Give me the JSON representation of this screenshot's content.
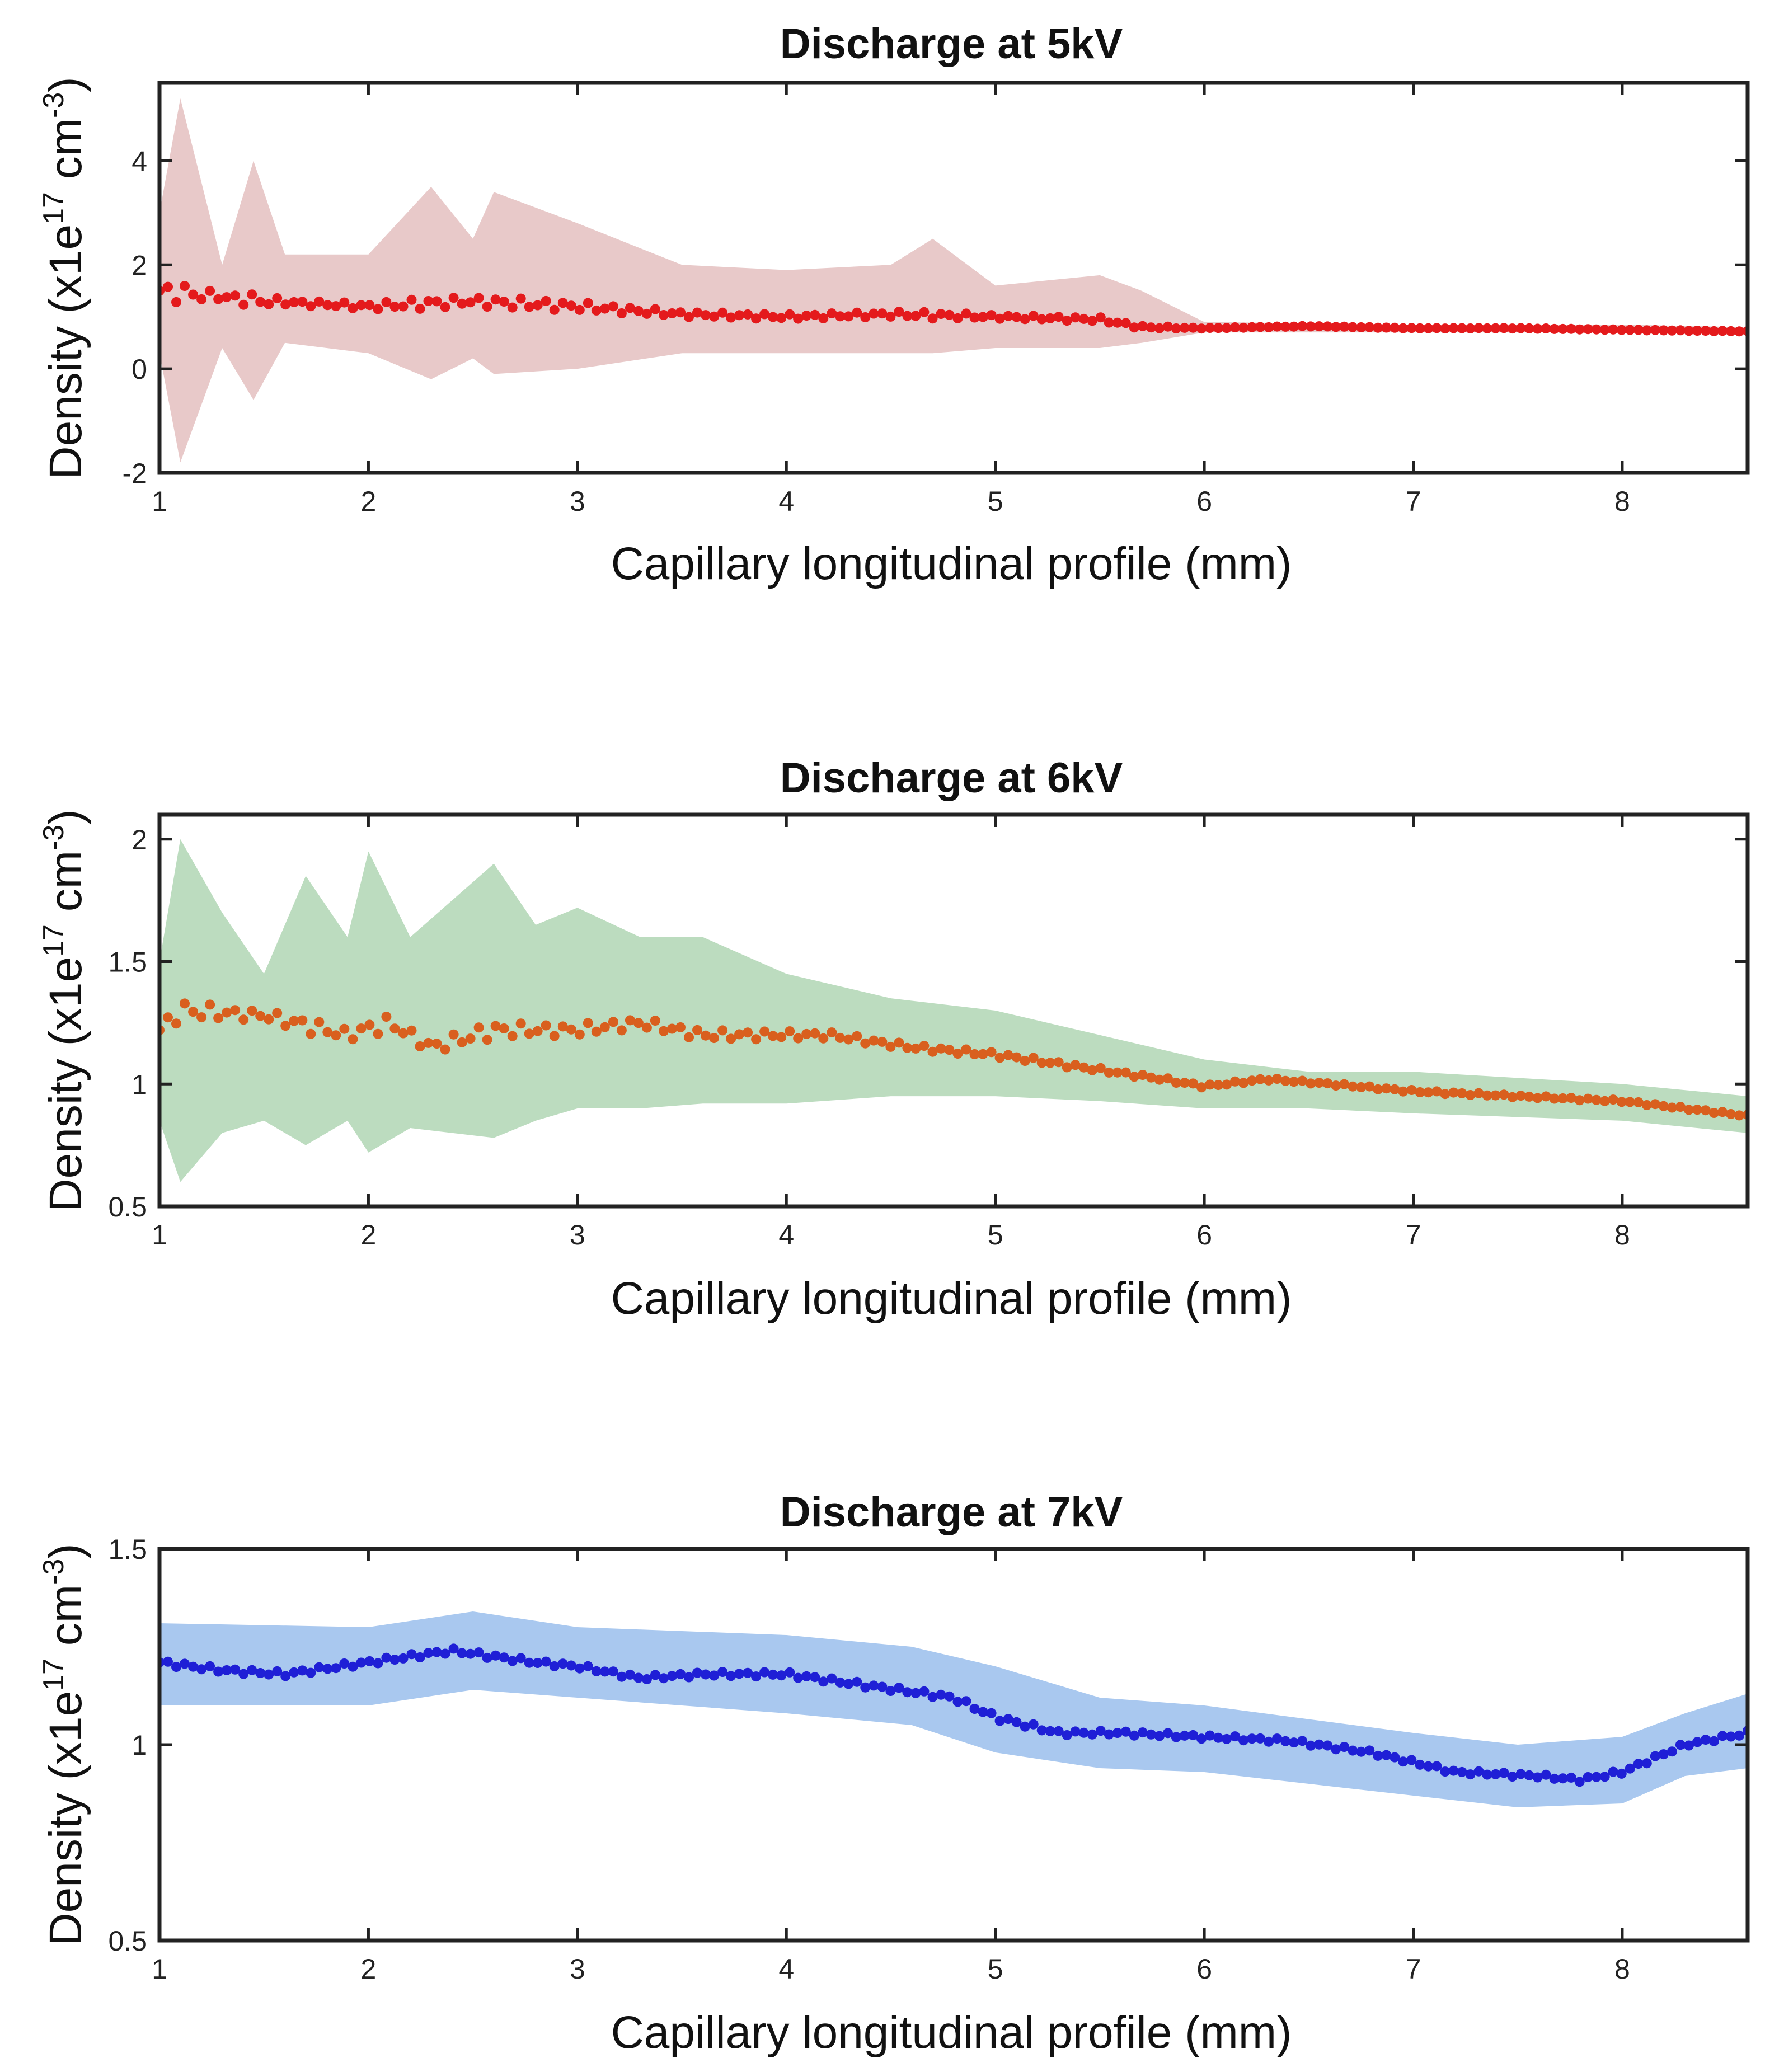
{
  "chart_data": [
    {
      "type": "scatter",
      "title": "Discharge at 5kV",
      "xlabel": "Capillary longitudinal profile (mm)",
      "ylabel": {
        "prefix": "Density (x1e",
        "sup1": "17",
        "mid": " cm",
        "sup2": "-3",
        "suffix": ")"
      },
      "xlim": [
        1,
        8.6
      ],
      "ylim": [
        -2,
        5.5
      ],
      "xticks": [
        1,
        2,
        3,
        4,
        5,
        6,
        7,
        8
      ],
      "yticks": [
        -2,
        0,
        2,
        4
      ],
      "marker_color": "#e41a1c",
      "band_color": "#e8c9c9",
      "series": [
        {
          "name": "Density mean",
          "x": [
            1.0,
            1.5,
            2.0,
            2.5,
            3.0,
            3.5,
            4.0,
            4.5,
            5.0,
            5.5,
            5.7,
            6.0,
            6.5,
            7.0,
            7.5,
            8.0,
            8.6
          ],
          "y": [
            1.5,
            1.3,
            1.2,
            1.3,
            1.2,
            1.05,
            1.0,
            1.05,
            1.0,
            0.95,
            0.8,
            0.78,
            0.82,
            0.78,
            0.78,
            0.75,
            0.72
          ]
        },
        {
          "name": "Uncertainty upper",
          "x": [
            1.0,
            1.1,
            1.3,
            1.45,
            1.6,
            2.0,
            2.3,
            2.5,
            2.6,
            3.0,
            3.5,
            4.0,
            4.5,
            4.7,
            5.0,
            5.5,
            5.7,
            6.0,
            7.0,
            8.0,
            8.6
          ],
          "y": [
            3.0,
            5.2,
            2.0,
            4.0,
            2.2,
            2.2,
            3.5,
            2.5,
            3.4,
            2.8,
            2.0,
            1.9,
            2.0,
            2.5,
            1.6,
            1.8,
            1.5,
            0.9,
            0.85,
            0.85,
            0.8
          ]
        },
        {
          "name": "Uncertainty lower",
          "x": [
            1.0,
            1.1,
            1.3,
            1.45,
            1.6,
            2.0,
            2.3,
            2.5,
            2.6,
            3.0,
            3.5,
            4.0,
            4.5,
            4.7,
            5.0,
            5.5,
            5.7,
            6.0,
            7.0,
            8.0,
            8.6
          ],
          "y": [
            0.3,
            -1.8,
            0.4,
            -0.6,
            0.5,
            0.3,
            -0.2,
            0.2,
            -0.1,
            0.0,
            0.3,
            0.3,
            0.3,
            0.3,
            0.4,
            0.4,
            0.5,
            0.7,
            0.7,
            0.7,
            0.65
          ]
        }
      ]
    },
    {
      "type": "scatter",
      "title": "Discharge at 6kV",
      "xlabel": "Capillary longitudinal profile (mm)",
      "ylabel": {
        "prefix": "Density (x1e",
        "sup1": "17",
        "mid": " cm",
        "sup2": "-3",
        "suffix": ")"
      },
      "xlim": [
        1,
        8.6
      ],
      "ylim": [
        0.5,
        2.1
      ],
      "xticks": [
        1,
        2,
        3,
        4,
        5,
        6,
        7,
        8
      ],
      "yticks": [
        0.5,
        1,
        1.5,
        2
      ],
      "marker_color": "#d95f1e",
      "band_color": "#bcdcbf",
      "series": [
        {
          "name": "Density mean",
          "x": [
            1.0,
            1.1,
            1.5,
            1.9,
            2.1,
            2.3,
            2.6,
            3.0,
            3.3,
            3.6,
            3.9,
            4.2,
            4.6,
            5.0,
            5.4,
            5.8,
            6.0,
            6.3,
            6.6,
            7.0,
            7.5,
            8.0,
            8.6
          ],
          "y": [
            1.22,
            1.3,
            1.28,
            1.2,
            1.25,
            1.15,
            1.22,
            1.22,
            1.25,
            1.2,
            1.2,
            1.2,
            1.15,
            1.12,
            1.07,
            1.02,
            0.99,
            1.02,
            1.0,
            0.97,
            0.95,
            0.93,
            0.87
          ]
        },
        {
          "name": "Uncertainty upper",
          "x": [
            1.0,
            1.1,
            1.3,
            1.5,
            1.7,
            1.9,
            2.0,
            2.2,
            2.4,
            2.6,
            2.8,
            3.0,
            3.3,
            3.6,
            4.0,
            4.5,
            5.0,
            5.5,
            6.0,
            6.5,
            7.0,
            8.0,
            8.6
          ],
          "y": [
            1.5,
            2.0,
            1.7,
            1.45,
            1.85,
            1.6,
            1.95,
            1.6,
            1.75,
            1.9,
            1.65,
            1.72,
            1.6,
            1.6,
            1.45,
            1.35,
            1.3,
            1.2,
            1.1,
            1.05,
            1.05,
            1.0,
            0.95
          ]
        },
        {
          "name": "Uncertainty lower",
          "x": [
            1.0,
            1.1,
            1.3,
            1.5,
            1.7,
            1.9,
            2.0,
            2.2,
            2.4,
            2.6,
            2.8,
            3.0,
            3.3,
            3.6,
            4.0,
            4.5,
            5.0,
            5.5,
            6.0,
            6.5,
            7.0,
            8.0,
            8.6
          ],
          "y": [
            0.85,
            0.6,
            0.8,
            0.85,
            0.75,
            0.85,
            0.72,
            0.82,
            0.8,
            0.78,
            0.85,
            0.9,
            0.9,
            0.92,
            0.92,
            0.95,
            0.95,
            0.93,
            0.9,
            0.9,
            0.88,
            0.85,
            0.8
          ]
        }
      ]
    },
    {
      "type": "scatter",
      "title": "Discharge at 7kV",
      "xlabel": "Capillary longitudinal profile (mm)",
      "ylabel": {
        "prefix": "Density (x1e",
        "sup1": "17",
        "mid": " cm",
        "sup2": "-3",
        "suffix": ")"
      },
      "xlim": [
        1,
        8.6
      ],
      "ylim": [
        0.5,
        1.5
      ],
      "xticks": [
        1,
        2,
        3,
        4,
        5,
        6,
        7,
        8
      ],
      "yticks": [
        0.5,
        1,
        1.5
      ],
      "marker_color": "#1f1fd6",
      "band_color": "#a9c8ef",
      "series": [
        {
          "name": "Density mean",
          "x": [
            1.0,
            1.3,
            1.6,
            2.0,
            2.4,
            2.8,
            3.0,
            3.3,
            3.6,
            4.0,
            4.4,
            4.8,
            5.0,
            5.3,
            5.6,
            6.0,
            6.4,
            6.8,
            7.2,
            7.6,
            7.8,
            8.0,
            8.3,
            8.6
          ],
          "y": [
            1.21,
            1.19,
            1.18,
            1.21,
            1.24,
            1.21,
            1.2,
            1.17,
            1.18,
            1.18,
            1.15,
            1.12,
            1.07,
            1.03,
            1.03,
            1.02,
            1.01,
            0.98,
            0.93,
            0.92,
            0.91,
            0.93,
            1.0,
            1.03
          ]
        },
        {
          "name": "Uncertainty upper",
          "x": [
            1.0,
            2.0,
            2.5,
            3.0,
            4.0,
            4.6,
            5.0,
            5.5,
            6.0,
            7.0,
            7.5,
            8.0,
            8.3,
            8.6
          ],
          "y": [
            1.31,
            1.3,
            1.34,
            1.3,
            1.28,
            1.25,
            1.2,
            1.12,
            1.1,
            1.03,
            1.0,
            1.02,
            1.08,
            1.13
          ]
        },
        {
          "name": "Uncertainty lower",
          "x": [
            1.0,
            2.0,
            2.5,
            3.0,
            4.0,
            4.6,
            5.0,
            5.5,
            6.0,
            7.0,
            7.5,
            8.0,
            8.3,
            8.6
          ],
          "y": [
            1.1,
            1.1,
            1.14,
            1.12,
            1.08,
            1.05,
            0.98,
            0.94,
            0.93,
            0.87,
            0.84,
            0.85,
            0.92,
            0.94
          ]
        }
      ]
    }
  ]
}
